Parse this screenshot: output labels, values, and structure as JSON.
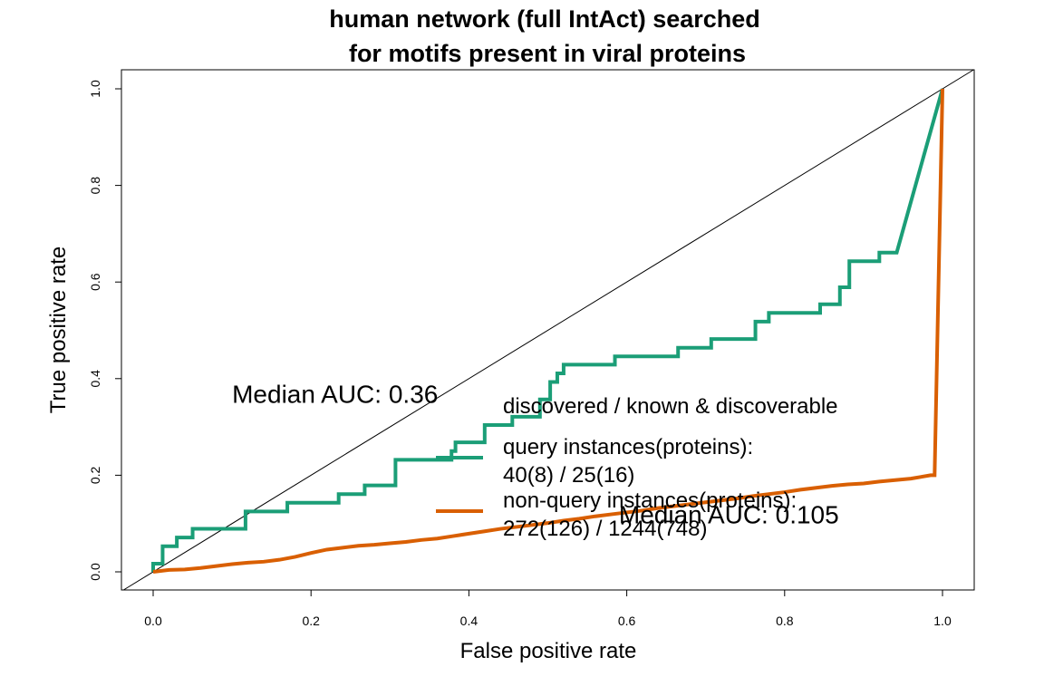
{
  "chart_data": {
    "type": "line",
    "title_lines": [
      "human network (full IntAct) searched",
      "for motifs present in viral proteins"
    ],
    "xlabel": "False positive rate",
    "ylabel": "True positive rate",
    "xlim": [
      0,
      1
    ],
    "ylim": [
      0,
      1
    ],
    "x_ticks": [
      "0.0",
      "0.2",
      "0.4",
      "0.6",
      "0.8",
      "1.0"
    ],
    "y_ticks": [
      "0.0",
      "0.2",
      "0.4",
      "0.6",
      "0.8",
      "1.0"
    ],
    "grid": false,
    "reference_line": {
      "x": [
        0,
        1
      ],
      "y": [
        0,
        1
      ],
      "color": "#000000"
    },
    "series": [
      {
        "color": "#1b9e77",
        "x": [
          0,
          0,
          0.012,
          0.012,
          0.03,
          0.03,
          0.05,
          0.05,
          0.117,
          0.117,
          0.17,
          0.17,
          0.235,
          0.235,
          0.268,
          0.268,
          0.307,
          0.307,
          0.378,
          0.378,
          0.383,
          0.383,
          0.42,
          0.42,
          0.42,
          0.455,
          0.455,
          0.49,
          0.49,
          0.503,
          0.503,
          0.512,
          0.512,
          0.52,
          0.52,
          0.527,
          0.527,
          0.585,
          0.585,
          0.665,
          0.665,
          0.707,
          0.707,
          0.763,
          0.763,
          0.78,
          0.78,
          0.845,
          0.845,
          0.87,
          0.87,
          0.882,
          0.882,
          0.92,
          0.92,
          0.942,
          1.0
        ],
        "y": [
          0,
          0.017,
          0.017,
          0.053,
          0.053,
          0.071,
          0.071,
          0.089,
          0.089,
          0.125,
          0.125,
          0.143,
          0.143,
          0.161,
          0.161,
          0.179,
          0.179,
          0.232,
          0.232,
          0.25,
          0.25,
          0.268,
          0.268,
          0.286,
          0.304,
          0.304,
          0.321,
          0.321,
          0.357,
          0.357,
          0.393,
          0.393,
          0.411,
          0.411,
          0.429,
          0.429,
          0.429,
          0.429,
          0.446,
          0.446,
          0.464,
          0.464,
          0.482,
          0.482,
          0.518,
          0.518,
          0.536,
          0.536,
          0.554,
          0.554,
          0.589,
          0.589,
          0.643,
          0.643,
          0.661,
          0.661,
          1.0
        ]
      },
      {
        "color": "#d95f02",
        "x": [
          0,
          0.02,
          0.04,
          0.06,
          0.08,
          0.1,
          0.12,
          0.14,
          0.16,
          0.18,
          0.2,
          0.22,
          0.24,
          0.26,
          0.28,
          0.3,
          0.32,
          0.34,
          0.36,
          0.38,
          0.4,
          0.42,
          0.44,
          0.46,
          0.48,
          0.5,
          0.52,
          0.54,
          0.56,
          0.58,
          0.6,
          0.62,
          0.64,
          0.66,
          0.68,
          0.7,
          0.72,
          0.74,
          0.76,
          0.78,
          0.8,
          0.82,
          0.84,
          0.86,
          0.88,
          0.9,
          0.92,
          0.94,
          0.96,
          0.985,
          0.99,
          1.0
        ],
        "y": [
          0,
          0.004,
          0.005,
          0.008,
          0.012,
          0.016,
          0.019,
          0.021,
          0.025,
          0.031,
          0.039,
          0.046,
          0.05,
          0.054,
          0.056,
          0.059,
          0.062,
          0.066,
          0.069,
          0.074,
          0.079,
          0.084,
          0.089,
          0.093,
          0.097,
          0.101,
          0.106,
          0.11,
          0.115,
          0.119,
          0.123,
          0.127,
          0.132,
          0.136,
          0.14,
          0.144,
          0.148,
          0.152,
          0.157,
          0.161,
          0.165,
          0.17,
          0.174,
          0.178,
          0.181,
          0.183,
          0.187,
          0.19,
          0.193,
          0.2,
          0.2,
          1.0
        ]
      }
    ],
    "annotations": [
      {
        "text": "Median AUC: 0.36",
        "x": 0.1,
        "y": 0.35
      },
      {
        "text": "Median AUC: 0.105",
        "x": 0.59,
        "y": 0.1
      }
    ],
    "legend": {
      "placement": "center-right",
      "title": "discovered / known & discoverable",
      "entries": [
        {
          "line1": "query instances(proteins):",
          "line2": "40(8) / 25(16)",
          "color": "#1b9e77"
        },
        {
          "line1": "non-query instances(proteins):",
          "line2": "272(126) / 1244(748)",
          "color": "#d95f02"
        }
      ]
    }
  }
}
